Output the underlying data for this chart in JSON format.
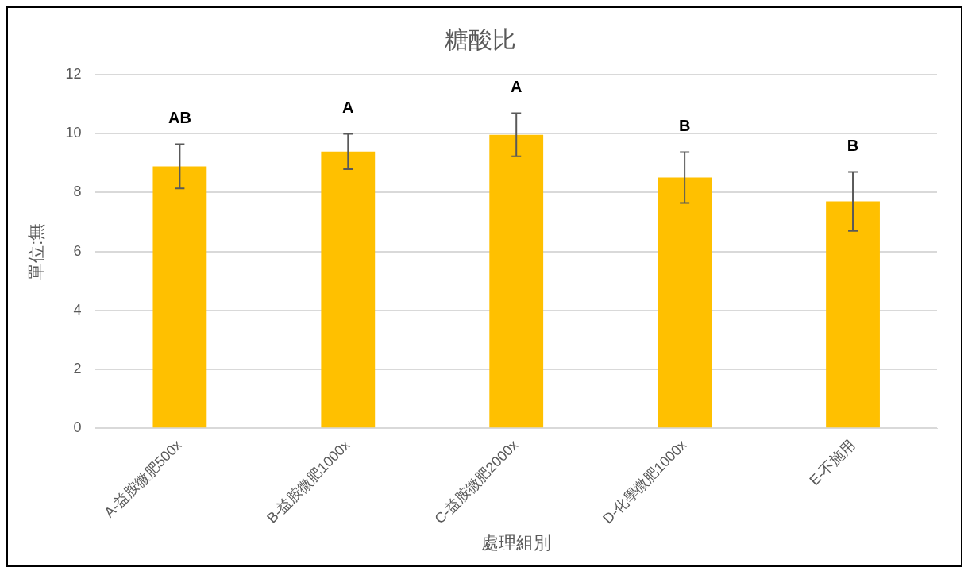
{
  "chart_data": {
    "type": "bar",
    "title": "糖酸比",
    "xlabel": "處理組別",
    "ylabel": "單位:無",
    "categories": [
      "A-益胺微肥500x",
      "B-益胺微肥1000x",
      "C-益胺微肥2000x",
      "D-化學微肥1000x",
      "E-不施用"
    ],
    "values": [
      8.89,
      9.39,
      9.96,
      8.51,
      7.7
    ],
    "errors": [
      0.75,
      0.6,
      0.73,
      0.86,
      1.0
    ],
    "color": "#ffc000",
    "ylim": [
      0,
      12
    ],
    "yticks": [
      0,
      2,
      4,
      6,
      8,
      10,
      12
    ],
    "grid": "y",
    "annotations": [
      "AB",
      "A",
      "A",
      "B",
      "B"
    ]
  }
}
